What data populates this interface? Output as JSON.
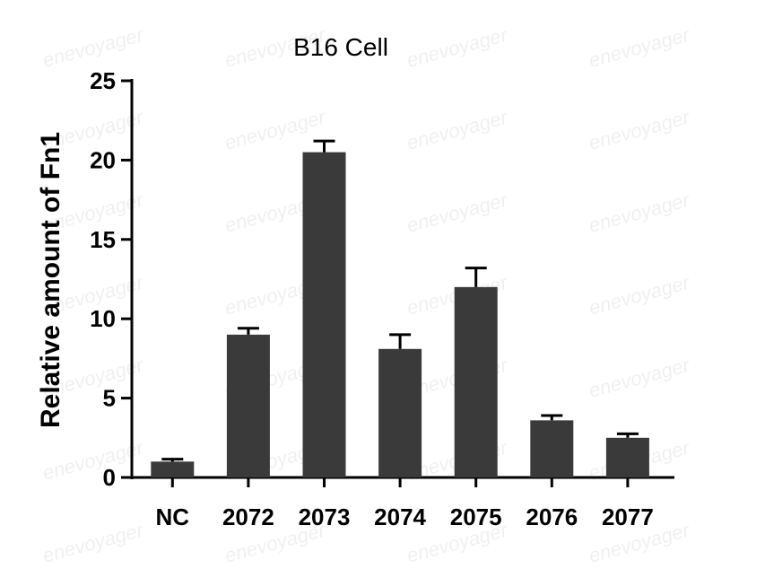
{
  "watermark_text": "enevoyager",
  "chart_data": {
    "type": "bar",
    "title": "B16 Cell",
    "ylabel": "Relative amount of Fn1",
    "xlabel": "",
    "categories": [
      "NC",
      "2072",
      "2073",
      "2074",
      "2075",
      "2076",
      "2077"
    ],
    "values": [
      1.0,
      9.0,
      20.5,
      8.1,
      12.0,
      3.6,
      2.5
    ],
    "errors": [
      0.15,
      0.4,
      0.7,
      0.9,
      1.2,
      0.3,
      0.25
    ],
    "ylim": [
      0,
      25
    ],
    "yticks": [
      "0",
      "5",
      "10",
      "15",
      "20",
      "25"
    ],
    "bar_color": "#3a3a3a",
    "grid": false,
    "legend": "none"
  }
}
